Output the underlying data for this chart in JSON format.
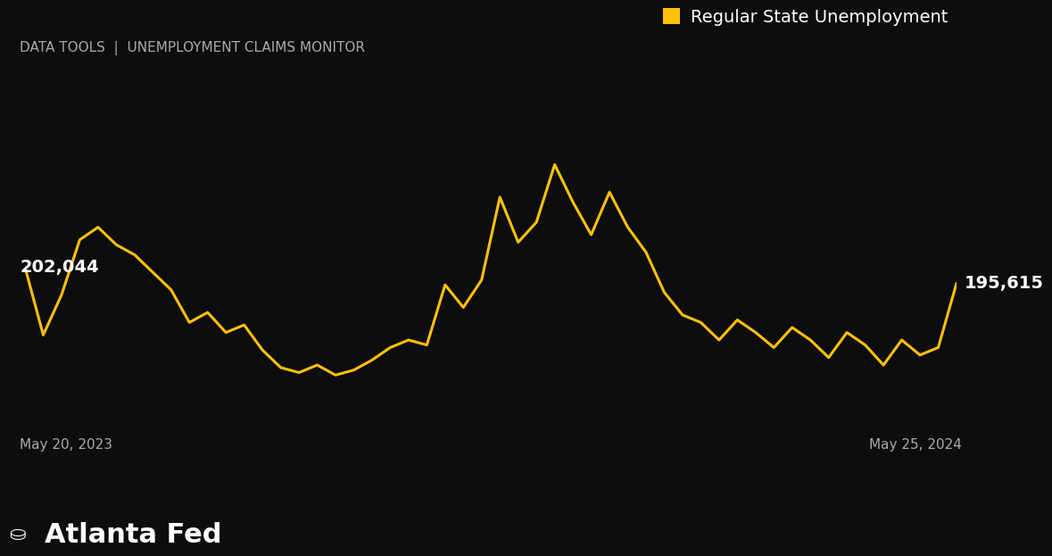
{
  "title": "DATA TOOLS  |  UNEMPLOYMENT CLAIMS MONITOR",
  "legend_label": "Regular State Unemployment",
  "line_color": "#FFC107",
  "background_color": "#0d0d0d",
  "text_color_light": "#aaaaaa",
  "text_color_white": "#ffffff",
  "label_start": "May 20, 2023",
  "label_end": "May 25, 2024",
  "first_value": 202044,
  "last_value": 195615,
  "atlanta_fed_text": "Atlanta Fed",
  "y_values": [
    202044,
    175000,
    191000,
    213000,
    218000,
    211000,
    207000,
    200000,
    193000,
    180000,
    184000,
    176000,
    179000,
    169000,
    162000,
    160000,
    163000,
    159000,
    161000,
    165000,
    170000,
    173000,
    171000,
    195000,
    186000,
    197000,
    230000,
    212000,
    220000,
    243000,
    228000,
    215000,
    232000,
    218000,
    208000,
    192000,
    183000,
    180000,
    173000,
    181000,
    176000,
    170000,
    178000,
    173000,
    166000,
    176000,
    171000,
    163000,
    173000,
    167000,
    170000,
    195615
  ],
  "ylim_min": 140000,
  "ylim_max": 265000
}
